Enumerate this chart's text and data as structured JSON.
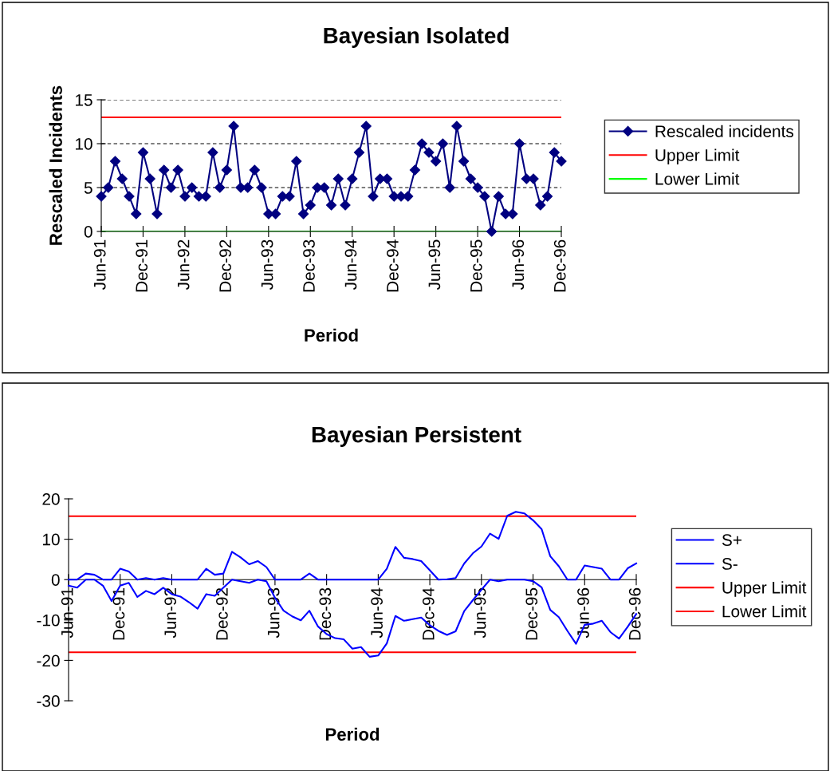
{
  "chart_data": [
    {
      "type": "line",
      "title": "Bayesian Isolated",
      "xlabel": "Period",
      "ylabel": "Rescaled Incidents",
      "categories": [
        "Jun-91",
        null,
        null,
        null,
        null,
        null,
        "Dec-91",
        null,
        null,
        null,
        null,
        null,
        "Jun-92",
        null,
        null,
        null,
        null,
        null,
        "Dec-92",
        null,
        null,
        null,
        null,
        null,
        "Jun-93",
        null,
        null,
        null,
        null,
        null,
        "Dec-93",
        null,
        null,
        null,
        null,
        null,
        "Jun-94",
        null,
        null,
        null,
        null,
        null,
        "Dec-94",
        null,
        null,
        null,
        null,
        null,
        "Jun-95",
        null,
        null,
        null,
        null,
        null,
        "Dec-95",
        null,
        null,
        null,
        null,
        null,
        "Jun-96",
        null,
        null,
        null,
        null,
        null,
        "Dec-96"
      ],
      "series": [
        {
          "name": "Rescaled incidents",
          "color": "#000080",
          "marker": "diamond",
          "values": [
            4,
            5,
            8,
            6,
            4,
            2,
            9,
            6,
            2,
            7,
            5,
            7,
            4,
            5,
            4,
            4,
            9,
            5,
            7,
            12,
            5,
            5,
            7,
            5,
            2,
            2,
            4,
            4,
            8,
            2,
            3,
            5,
            5,
            3,
            6,
            3,
            6,
            9,
            12,
            4,
            6,
            6,
            4,
            4,
            4,
            7,
            10,
            9,
            8,
            10,
            5,
            12,
            8,
            6,
            5,
            4,
            0,
            4,
            2,
            2,
            10,
            6,
            6,
            3,
            4,
            9,
            8
          ]
        }
      ],
      "ref_lines": [
        {
          "axis": "y",
          "value": 13,
          "label": "Upper Limit",
          "color": "#ff0000"
        },
        {
          "axis": "y",
          "value": 0,
          "label": "Lower Limit",
          "color": "#00ff00"
        }
      ],
      "ylim": [
        0,
        15
      ],
      "yticks": [
        0,
        5,
        10,
        15
      ],
      "grid": "y",
      "legend": "right"
    },
    {
      "type": "line",
      "title": "Bayesian Persistent",
      "xlabel": "Period",
      "categories": [
        "Jun-91",
        null,
        null,
        null,
        null,
        null,
        "Dec-91",
        null,
        null,
        null,
        null,
        null,
        "Jun-92",
        null,
        null,
        null,
        null,
        null,
        "Dec-92",
        null,
        null,
        null,
        null,
        null,
        "Jun-93",
        null,
        null,
        null,
        null,
        null,
        "Dec-93",
        null,
        null,
        null,
        null,
        null,
        "Jun-94",
        null,
        null,
        null,
        null,
        null,
        "Dec-94",
        null,
        null,
        null,
        null,
        null,
        "Jun-95",
        null,
        null,
        null,
        null,
        null,
        "Dec-95",
        null,
        null,
        null,
        null,
        null,
        "Jun-96",
        null,
        null,
        null,
        null,
        null,
        "Dec-96"
      ],
      "series": [
        {
          "name": "S+",
          "color": "#0000ff",
          "values": [
            0,
            0,
            1.5,
            1.2,
            0,
            0,
            2.7,
            2,
            0,
            0.4,
            0,
            0.4,
            0,
            0,
            0,
            0,
            2.7,
            1.2,
            1.5,
            6.9,
            5.5,
            3.8,
            4.6,
            3.1,
            0,
            0,
            0,
            0,
            1.5,
            0,
            0,
            0,
            0,
            0,
            0,
            0,
            0,
            2.7,
            8.1,
            5.4,
            5.1,
            4.6,
            2.3,
            0,
            0.1,
            0.4,
            4,
            6.5,
            8.2,
            11.4,
            10.1,
            15.8,
            16.8,
            16.4,
            14.7,
            12.5,
            5.8,
            3.3,
            0,
            0,
            3.5,
            3.1,
            2.7,
            0,
            0,
            2.8,
            4
          ]
        },
        {
          "name": "S-",
          "color": "#0000ff",
          "values": [
            -1.5,
            -2,
            0,
            0,
            -1.5,
            -5.3,
            -1.5,
            -0.8,
            -4.3,
            -2.8,
            -3.6,
            -2,
            -3.6,
            -4.2,
            -5.6,
            -7.2,
            -3.6,
            -4,
            -2,
            0,
            -0.4,
            -0.8,
            0,
            -0.4,
            -4.5,
            -7.7,
            -9.1,
            -10.1,
            -7.7,
            -11.6,
            -13.5,
            -14.5,
            -14.8,
            -17.1,
            -16.7,
            -19.1,
            -18.8,
            -15.8,
            -9,
            -10.2,
            -9.8,
            -9.4,
            -11.3,
            -12.7,
            -13.7,
            -12.8,
            -7.8,
            -5.1,
            -2.5,
            0,
            -0.4,
            0,
            0,
            0,
            -0.4,
            -1.9,
            -7.5,
            -9.3,
            -12.7,
            -15.9,
            -11.2,
            -10.9,
            -10.2,
            -13,
            -14.6,
            -11.7,
            -8.5
          ]
        }
      ],
      "ref_lines": [
        {
          "axis": "y",
          "value": 15.7,
          "label": "Upper Limit",
          "color": "#ff0000"
        },
        {
          "axis": "y",
          "value": -18,
          "label": "Lower Limit",
          "color": "#ff0000"
        }
      ],
      "ylim": [
        -30,
        20
      ],
      "yticks": [
        -30,
        -20,
        -10,
        0,
        10,
        20
      ],
      "legend": "right"
    }
  ]
}
